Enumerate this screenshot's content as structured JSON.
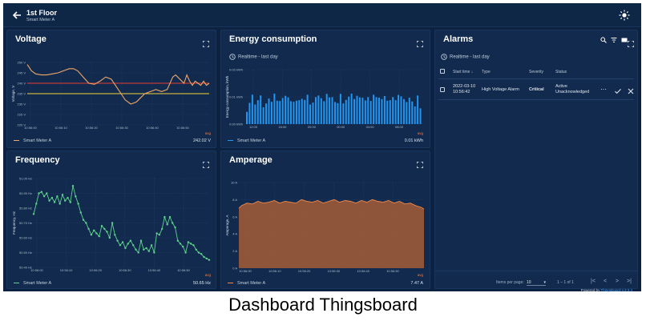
{
  "header": {
    "title": "1st Floor",
    "subtitle": "Smart Meter A"
  },
  "voltage": {
    "title": "Voltage",
    "ylabel": "Voltage, V",
    "legend_name": "Smart Meter A",
    "avg_label": "avg",
    "avg_value": "242.02 V",
    "line_color": "#f0a868",
    "threshold_high_color": "#e53935",
    "threshold_low_color": "#f2d13b"
  },
  "energy": {
    "title": "Energy consumption",
    "realtime": "Realtime - last day",
    "ylabel": "Energy consumption, kWh",
    "legend_name": "Smart Meter A",
    "avg_label": "avg",
    "avg_value": "0.01 kWh",
    "bar_color": "#2196f3"
  },
  "frequency": {
    "title": "Frequency",
    "ylabel": "Frequency, Hz",
    "legend_name": "Smart Meter A",
    "avg_label": "avg",
    "avg_value": "50.65 Hz",
    "line_color": "#5fd38d"
  },
  "amperage": {
    "title": "Amperage",
    "ylabel": "Amperage, A",
    "legend_name": "Smart Meter A",
    "avg_label": "avg",
    "avg_value": "7.47 A",
    "fill_color": "#9c5a3a",
    "line_color": "#f08a4b"
  },
  "alarms": {
    "title": "Alarms",
    "realtime": "Realtime - last day",
    "headers": {
      "start_time": "Start time",
      "type": "Type",
      "severity": "Severity",
      "status": "Status"
    },
    "rows": [
      {
        "start_date": "2022-03-10",
        "start_clock": "10:56:42",
        "type": "High Voltage Alarm",
        "severity": "Critical",
        "status_line1": "Active",
        "status_line2": "Unacknowledged"
      }
    ],
    "items_per_page_label": "Items per page:",
    "items_per_page_value": "10",
    "range": "1 – 1 of 1",
    "powered_prefix": "Powered by",
    "powered_brand": "Thingsboard v.3.3.4"
  },
  "caption": "Dashboard Thingsboard",
  "chart_data": [
    {
      "type": "line",
      "title": "Voltage",
      "ylabel": "Voltage, V",
      "ylim": [
        220,
        250
      ],
      "yticks": [
        "220 V",
        "225 V",
        "230 V",
        "235 V",
        "240 V",
        "245 V",
        "250 V"
      ],
      "xticks": [
        "10:56:00",
        "10:56:10",
        "10:56:20",
        "10:56:30",
        "10:56:40",
        "10:56:50"
      ],
      "xlim": [
        0,
        65
      ],
      "thresholds": [
        240,
        235
      ],
      "series": [
        {
          "name": "Smart Meter A",
          "x": [
            0,
            1.5,
            3,
            5,
            7,
            9,
            11,
            13,
            15,
            16.5,
            18,
            20,
            22,
            24,
            26,
            28,
            30,
            32,
            33.5,
            35,
            37,
            39,
            40.5,
            42,
            44,
            46,
            48,
            50,
            51,
            52,
            53,
            54.5,
            56,
            57,
            58,
            59,
            60,
            61,
            62,
            63,
            64,
            65
          ],
          "y": [
            249,
            246,
            244.5,
            244,
            244,
            244.5,
            245,
            246,
            247,
            247,
            246,
            243,
            240,
            239.5,
            241,
            243,
            242,
            238,
            235,
            232,
            230,
            231,
            233,
            235,
            236,
            237,
            236,
            237,
            240,
            243,
            244,
            242,
            240,
            244,
            241,
            239,
            241,
            240,
            239,
            241,
            239,
            240
          ]
        }
      ]
    },
    {
      "type": "bar",
      "title": "Energy consumption",
      "ylabel": "Energy consumption, kWh",
      "ylim": [
        0,
        0.02
      ],
      "yticks": [
        "0.00 kWh",
        "0.01 kWh",
        "0.02 kWh"
      ],
      "xticks": [
        "12:00",
        "16:00",
        "20:00",
        "00:00",
        "04:00",
        "08:00"
      ],
      "series": [
        {
          "name": "Smart Meter A",
          "values": [
            0.0045,
            0.0078,
            0.0108,
            0.0072,
            0.0088,
            0.0105,
            0.0062,
            0.0076,
            0.0094,
            0.0082,
            0.0112,
            0.0086,
            0.0085,
            0.0096,
            0.0104,
            0.0098,
            0.0084,
            0.0082,
            0.0086,
            0.0088,
            0.0093,
            0.0089,
            0.0108,
            0.0072,
            0.0079,
            0.0099,
            0.0105,
            0.0095,
            0.0084,
            0.0111,
            0.0098,
            0.0099,
            0.0081,
            0.0077,
            0.0111,
            0.0076,
            0.0089,
            0.0101,
            0.0112,
            0.0092,
            0.0104,
            0.0098,
            0.0097,
            0.0087,
            0.0099,
            0.0085,
            0.0108,
            0.0099,
            0.0097,
            0.0092,
            0.0103,
            0.0086,
            0.0088,
            0.0099,
            0.0088,
            0.0107,
            0.0102,
            0.0092,
            0.0081,
            0.0097,
            0.0083,
            0.0065,
            0.0105,
            0.0058
          ]
        }
      ]
    },
    {
      "type": "line",
      "title": "Frequency",
      "ylabel": "Frequency, Hz",
      "ylim": [
        50.4,
        51.0
      ],
      "yticks": [
        "50.40 Hz",
        "50.50 Hz",
        "50.60 Hz",
        "50.70 Hz",
        "50.80 Hz",
        "50.90 Hz",
        "51.00 Hz"
      ],
      "xticks": [
        "10:56:00",
        "10:56:10",
        "10:56:20",
        "10:56:30",
        "10:56:40",
        "10:56:50"
      ],
      "xlim": [
        -3,
        64
      ],
      "series": [
        {
          "name": "Smart Meter A",
          "x": [
            -3,
            -2,
            -1,
            0,
            1,
            2,
            3,
            4,
            5,
            6,
            7,
            8,
            9,
            10,
            11,
            12,
            13,
            14,
            15,
            16,
            17,
            18,
            19,
            20,
            21,
            22,
            23,
            24,
            25,
            26,
            27,
            28,
            29,
            30,
            31,
            32,
            33,
            34,
            35,
            36,
            37,
            38,
            39,
            40,
            41,
            42,
            43,
            44,
            45,
            46,
            47,
            48,
            49,
            50,
            51,
            52,
            53,
            54,
            55,
            56,
            57,
            58,
            59,
            60,
            61,
            62,
            63,
            64
          ],
          "y": [
            50.76,
            50.83,
            50.9,
            50.91,
            50.88,
            50.9,
            50.85,
            50.87,
            50.84,
            50.88,
            50.83,
            50.89,
            50.85,
            50.87,
            50.84,
            50.95,
            50.88,
            50.83,
            50.77,
            50.72,
            50.7,
            50.66,
            50.62,
            50.65,
            50.63,
            50.61,
            50.68,
            50.66,
            50.64,
            50.6,
            50.7,
            50.62,
            50.58,
            50.55,
            50.57,
            50.53,
            50.56,
            50.58,
            50.55,
            50.52,
            50.5,
            50.58,
            50.52,
            50.53,
            50.51,
            50.55,
            50.5,
            50.63,
            50.62,
            50.66,
            50.74,
            50.69,
            50.74,
            50.7,
            50.67,
            50.58,
            50.56,
            50.54,
            50.5,
            50.57,
            50.56,
            50.55,
            50.52,
            50.5,
            50.49,
            50.47,
            50.46,
            50.45
          ]
        }
      ]
    },
    {
      "type": "area",
      "title": "Amperage",
      "ylabel": "Amperage, A",
      "ylim": [
        0,
        10
      ],
      "yticks": [
        "0 A",
        "2 A",
        "4 A",
        "6 A",
        "8 A",
        "10 A"
      ],
      "xticks": [
        "10:56:00",
        "10:56:10",
        "10:56:20",
        "10:56:30",
        "10:56:40",
        "10:56:50"
      ],
      "xlim": [
        -5,
        63
      ],
      "series": [
        {
          "name": "Smart Meter A",
          "x": [
            -5,
            -4,
            -2,
            0,
            2,
            4,
            6,
            8,
            10,
            12,
            14,
            16,
            18,
            20,
            22,
            24,
            26,
            28,
            30,
            32,
            34,
            36,
            38,
            40,
            42,
            44,
            46,
            48,
            50,
            52,
            54,
            56,
            58,
            60,
            62,
            63
          ],
          "y": [
            7.0,
            7.3,
            7.6,
            7.5,
            7.8,
            7.6,
            7.7,
            7.9,
            7.6,
            7.8,
            7.7,
            7.6,
            8.0,
            7.8,
            7.7,
            7.9,
            7.6,
            7.8,
            8.0,
            7.7,
            7.9,
            7.8,
            7.6,
            7.9,
            7.7,
            8.0,
            7.8,
            7.7,
            7.9,
            7.6,
            7.8,
            7.5,
            7.6,
            7.3,
            7.1,
            6.9
          ]
        }
      ]
    }
  ]
}
